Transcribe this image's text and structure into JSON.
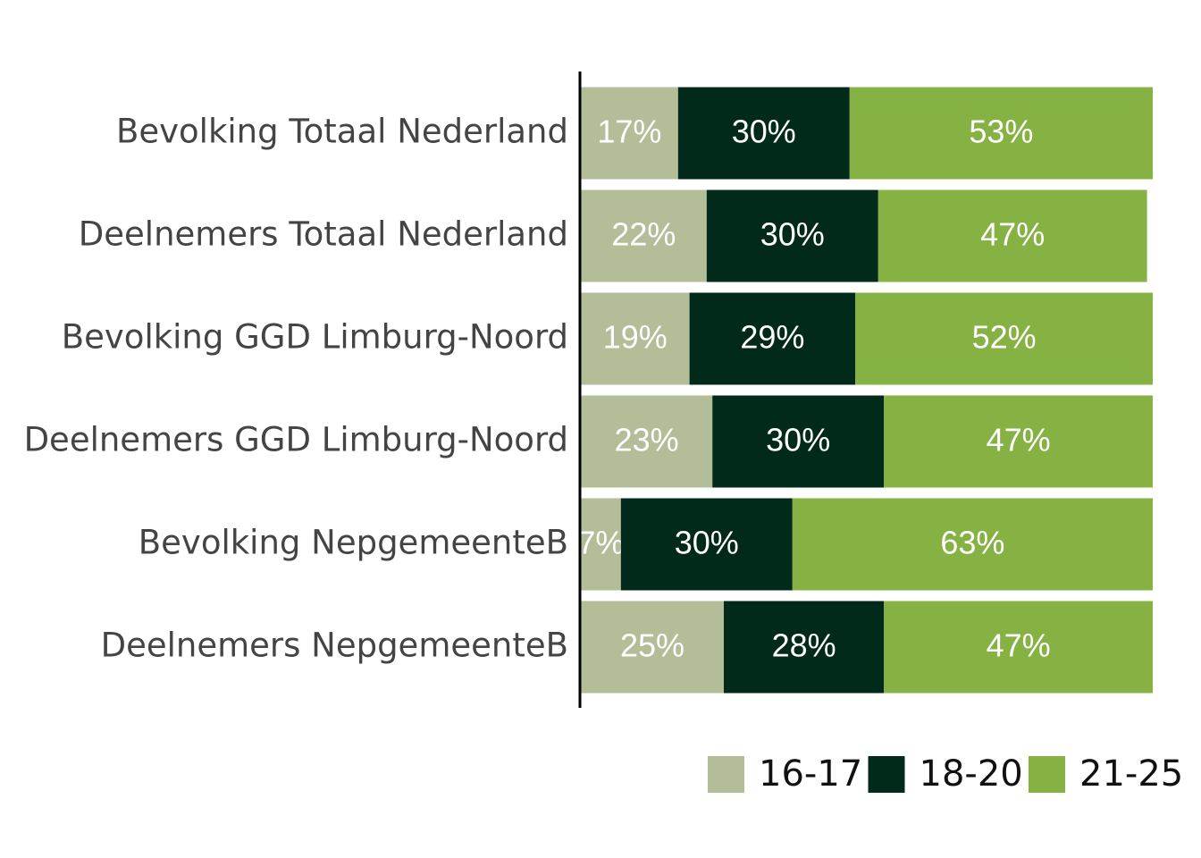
{
  "chart_data": {
    "type": "stacked-bar-horizontal",
    "categories": [
      "Bevolking Totaal Nederland",
      "Deelnemers Totaal Nederland",
      "Bevolking GGD Limburg-Noord",
      "Deelnemers GGD Limburg-Noord",
      "Bevolking NepgemeenteB",
      "Deelnemers NepgemeenteB"
    ],
    "series": [
      {
        "name": "16-17",
        "color": "#b3be98",
        "values": [
          17,
          22,
          19,
          23,
          7,
          25
        ],
        "value_labels": [
          "17%",
          "22%",
          "19%",
          "23%",
          "7%",
          "25%"
        ]
      },
      {
        "name": "18-20",
        "color": "#022a1a",
        "values": [
          30,
          30,
          29,
          30,
          30,
          28
        ],
        "value_labels": [
          "30%",
          "30%",
          "29%",
          "30%",
          "30%",
          "28%"
        ]
      },
      {
        "name": "21-25",
        "color": "#86b244",
        "values": [
          53,
          47,
          52,
          47,
          63,
          47
        ],
        "value_labels": [
          "53%",
          "47%",
          "52%",
          "47%",
          "63%",
          "47%"
        ]
      }
    ],
    "xlim": [
      0,
      100
    ],
    "legend": "bottom-right"
  }
}
